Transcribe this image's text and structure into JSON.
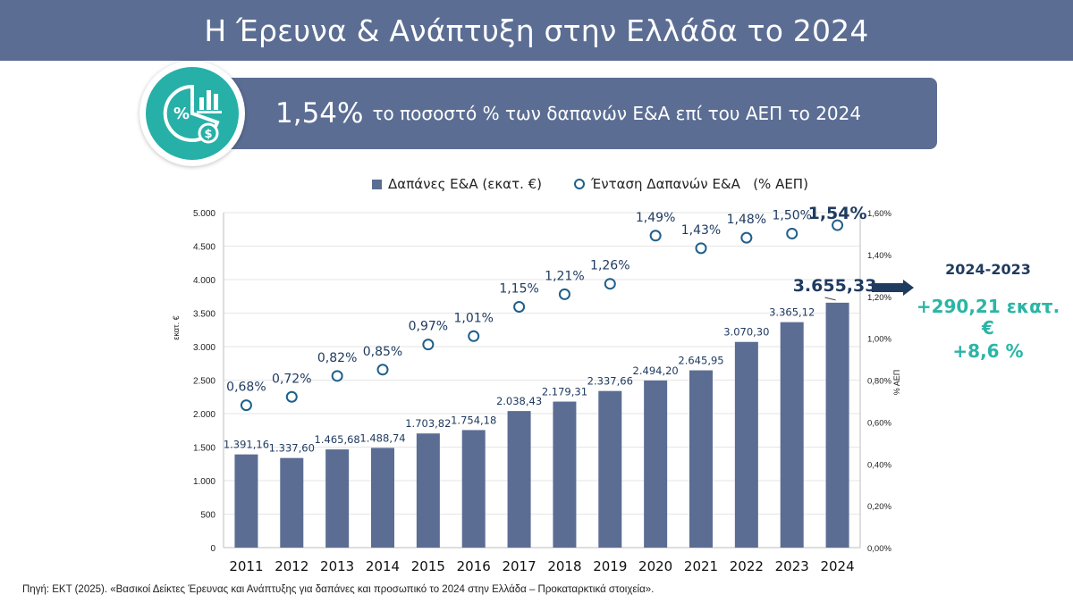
{
  "header": {
    "title": "Η Έρευνα & Ανάπτυξη στην Ελλάδα το 2024"
  },
  "banner": {
    "big_value": "1,54%",
    "text": "το ποσοστό % των δαπανών Ε&Α επί του ΑΕΠ το 2024"
  },
  "badge": {
    "icon": "percent-chart-money-icon",
    "glyph": "%"
  },
  "legend": {
    "bars_label": "Δαπάνες Ε&Α (εκατ. €)",
    "points_label": "Ένταση Δαπανών Ε&Α   (% ΑΕΠ)"
  },
  "delta": {
    "period": "2024-2023",
    "absolute": "+290,21 εκατ. €",
    "percent": "+8,6 %"
  },
  "source": "Πηγή: ΕΚΤ (2025). «Βασικοί Δείκτες Έρευνας και Ανάπτυξης για δαπάνες και προσωπικό το 2024 στην Ελλάδα – Προκαταρκτικά στοιχεία».",
  "colors": {
    "bar": "#5b6d93",
    "accent": "#1f5f8b",
    "teal": "#2bb5a6",
    "axis_label": "#1f3b60"
  },
  "chart_data": {
    "type": "bar+scatter",
    "categories": [
      "2011",
      "2012",
      "2013",
      "2014",
      "2015",
      "2016",
      "2017",
      "2018",
      "2019",
      "2020",
      "2021",
      "2022",
      "2023",
      "2024"
    ],
    "series": [
      {
        "name": "Δαπάνες Ε&Α (εκατ. €)",
        "type": "bar",
        "axis": "left",
        "values": [
          1391.16,
          1337.6,
          1465.68,
          1488.74,
          1703.82,
          1754.18,
          2038.43,
          2179.31,
          2337.66,
          2494.2,
          2645.95,
          3070.3,
          3365.12,
          3655.33
        ],
        "labels": [
          "1.391,16",
          "1.337,60",
          "1.465,68",
          "1.488,74",
          "1.703,82",
          "1.754,18",
          "2.038,43",
          "2.179,31",
          "2.337,66",
          "2.494,20",
          "2.645,95",
          "3.070,30",
          "3.365,12",
          "3.655,33"
        ]
      },
      {
        "name": "Ένταση Δαπανών Ε&Α (% ΑΕΠ)",
        "type": "scatter",
        "axis": "right",
        "values": [
          0.68,
          0.72,
          0.82,
          0.85,
          0.97,
          1.01,
          1.15,
          1.21,
          1.26,
          1.49,
          1.43,
          1.48,
          1.5,
          1.54
        ],
        "labels": [
          "0,68%",
          "0,72%",
          "0,82%",
          "0,85%",
          "0,97%",
          "1,01%",
          "1,15%",
          "1,21%",
          "1,26%",
          "1,49%",
          "1,43%",
          "1,48%",
          "1,50%",
          "1,54%"
        ]
      }
    ],
    "ylabel": "εκατ. €",
    "ylim": [
      0,
      5000
    ],
    "yticks": [
      0,
      500,
      1000,
      1500,
      2000,
      2500,
      3000,
      3500,
      4000,
      4500,
      5000
    ],
    "ytick_labels": [
      "0",
      "500",
      "1.000",
      "1.500",
      "2.000",
      "2.500",
      "3.000",
      "3.500",
      "4.000",
      "4.500",
      "5.000"
    ],
    "y2label": "% ΑΕΠ",
    "y2lim": [
      0,
      1.6
    ],
    "y2ticks": [
      0,
      0.2,
      0.4,
      0.6,
      0.8,
      1.0,
      1.2,
      1.4,
      1.6
    ],
    "y2tick_labels": [
      "0,00%",
      "0,20%",
      "0,40%",
      "0,60%",
      "0,80%",
      "1,00%",
      "1,20%",
      "1,40%",
      "1,60%"
    ],
    "grid": true,
    "legend_position": "top"
  }
}
